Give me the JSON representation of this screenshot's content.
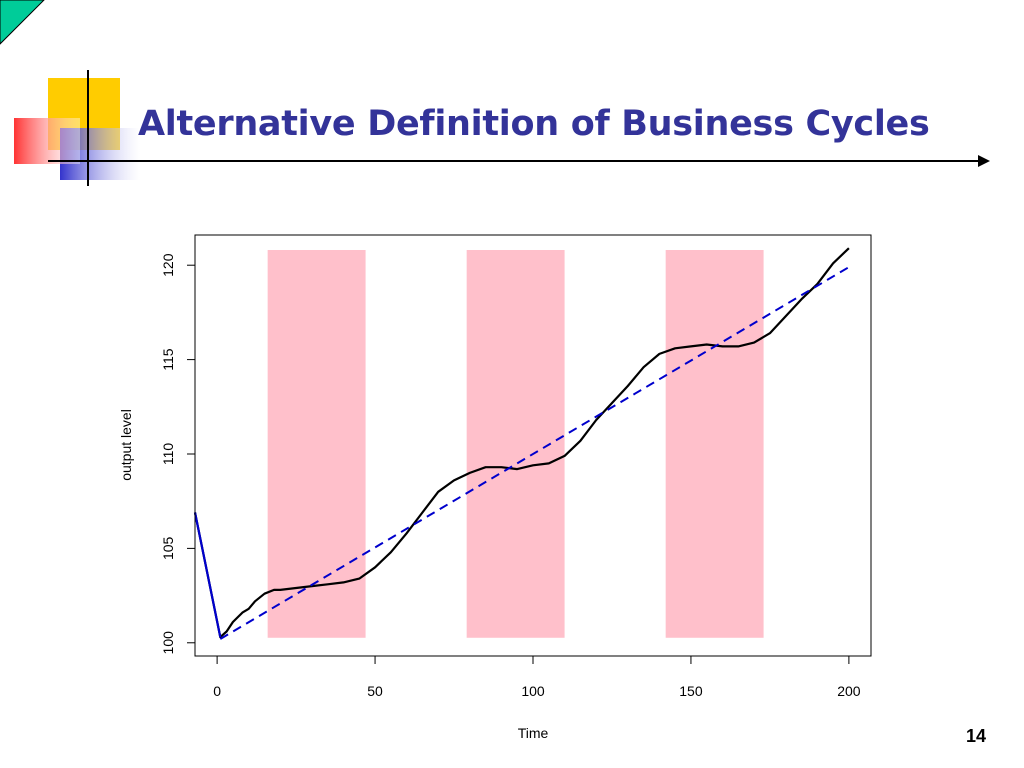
{
  "slide": {
    "title": "Alternative Definition of Business Cycles",
    "page_number": "14",
    "accent_colors": [
      "#333399",
      "#00cc99",
      "#ffcc00",
      "#ff3333",
      "#3333cc"
    ]
  },
  "chart_data": {
    "type": "line",
    "xlabel": "Time",
    "ylabel": "output level",
    "xlim": [
      -7,
      207
    ],
    "ylim": [
      99.3,
      121.6
    ],
    "xticks": [
      0,
      50,
      100,
      150,
      200
    ],
    "yticks": [
      100,
      105,
      110,
      115,
      120
    ],
    "grid": false,
    "shaded_regions": [
      {
        "x0": 16,
        "x1": 47,
        "color": "#ffc0cb"
      },
      {
        "x0": 79,
        "x1": 110,
        "color": "#ffc0cb"
      },
      {
        "x0": 142,
        "x1": 173,
        "color": "#ffc0cb"
      }
    ],
    "series": [
      {
        "style": "solid",
        "color": "#000000",
        "points": [
          [
            -7,
            106.9
          ],
          [
            1,
            100.3
          ],
          [
            3,
            100.6
          ],
          [
            5,
            101.1
          ],
          [
            8,
            101.6
          ],
          [
            10,
            101.8
          ],
          [
            12,
            102.2
          ],
          [
            15,
            102.6
          ],
          [
            18,
            102.8
          ],
          [
            20,
            102.8
          ],
          [
            25,
            102.9
          ],
          [
            30,
            103.0
          ],
          [
            35,
            103.1
          ],
          [
            40,
            103.2
          ],
          [
            45,
            103.4
          ],
          [
            50,
            104.0
          ],
          [
            55,
            104.8
          ],
          [
            60,
            105.8
          ],
          [
            65,
            106.9
          ],
          [
            70,
            108.0
          ],
          [
            75,
            108.6
          ],
          [
            80,
            109.0
          ],
          [
            85,
            109.3
          ],
          [
            90,
            109.3
          ],
          [
            95,
            109.2
          ],
          [
            100,
            109.4
          ],
          [
            105,
            109.5
          ],
          [
            110,
            109.9
          ],
          [
            115,
            110.7
          ],
          [
            120,
            111.8
          ],
          [
            125,
            112.7
          ],
          [
            130,
            113.6
          ],
          [
            135,
            114.6
          ],
          [
            140,
            115.3
          ],
          [
            145,
            115.6
          ],
          [
            150,
            115.7
          ],
          [
            155,
            115.8
          ],
          [
            160,
            115.7
          ],
          [
            165,
            115.7
          ],
          [
            170,
            115.9
          ],
          [
            175,
            116.4
          ],
          [
            180,
            117.3
          ],
          [
            185,
            118.2
          ],
          [
            190,
            119.0
          ],
          [
            195,
            120.1
          ],
          [
            200,
            120.9
          ]
        ]
      },
      {
        "style": "dashed",
        "color": "#0000cc",
        "points": [
          [
            1,
            100.2
          ],
          [
            200,
            119.9
          ]
        ]
      },
      {
        "style": "solid",
        "color": "#0000cc",
        "points": [
          [
            -7,
            106.9
          ],
          [
            1,
            100.3
          ]
        ]
      }
    ]
  }
}
